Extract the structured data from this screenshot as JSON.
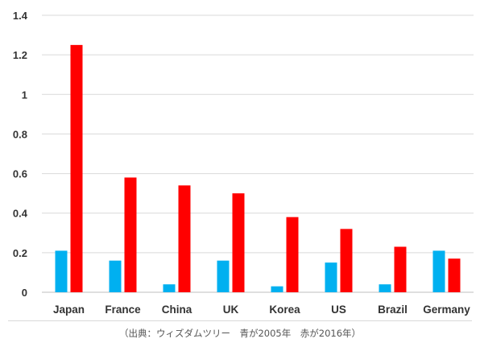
{
  "chart_data": {
    "type": "bar",
    "categories": [
      "Japan",
      "France",
      "China",
      "UK",
      "Korea",
      "US",
      "Brazil",
      "Germany"
    ],
    "series": [
      {
        "values": [
          0.21,
          0.16,
          0.04,
          0.16,
          0.03,
          0.15,
          0.04,
          0.21
        ],
        "color": "#00b0f0"
      },
      {
        "values": [
          1.25,
          0.58,
          0.54,
          0.5,
          0.38,
          0.32,
          0.23,
          0.17
        ],
        "color": "#ff0000"
      }
    ],
    "ylim": [
      0,
      1.4
    ],
    "yticks": [
      "0",
      "0.2",
      "0.4",
      "0.6",
      "0.8",
      "1",
      "1.2",
      "1.4"
    ],
    "grid": true
  },
  "caption": "（出典：ウィズダムツリー　青が2005年　赤が2016年）"
}
